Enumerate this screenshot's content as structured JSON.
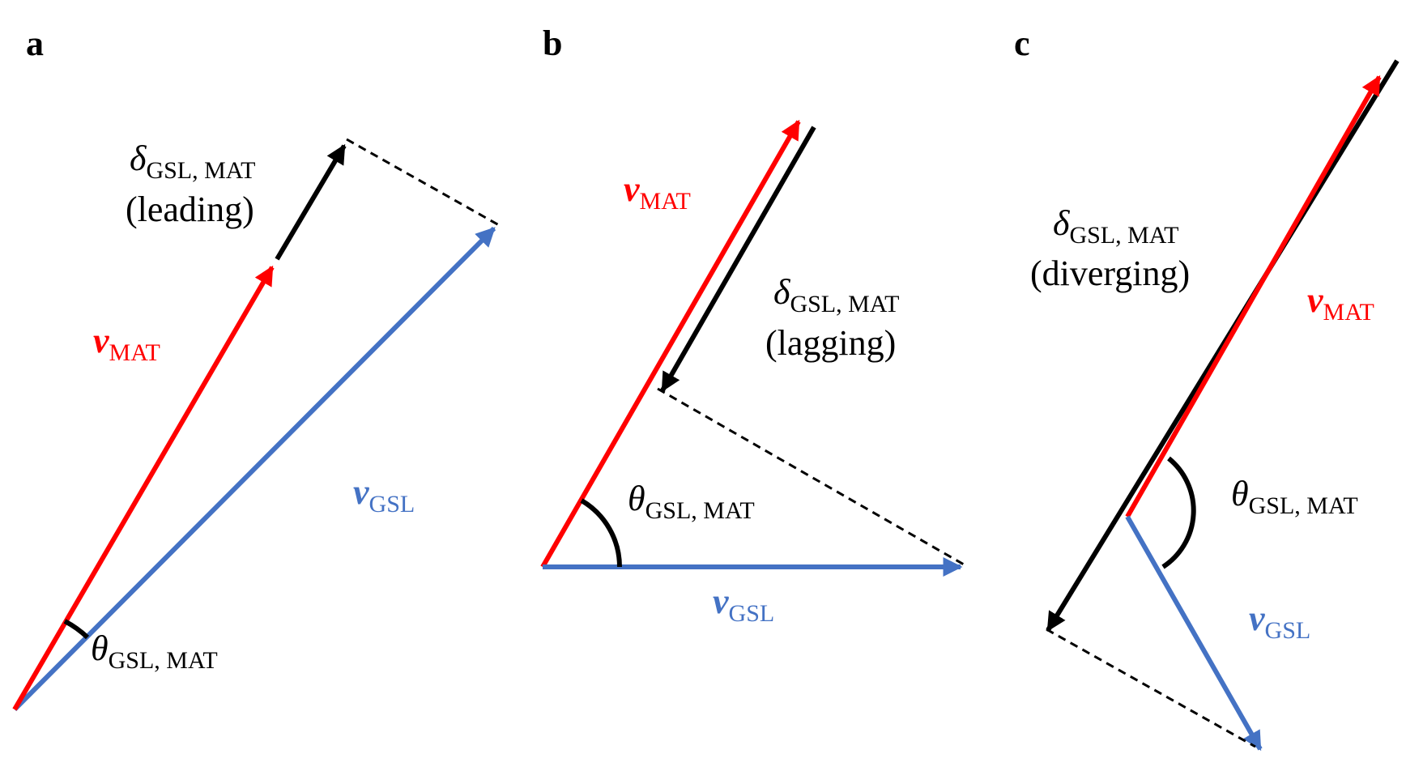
{
  "colors": {
    "red": "#ff0000",
    "blue": "#4472c4",
    "black": "#000000"
  },
  "panels": {
    "a": {
      "letter": "a",
      "v_mat": {
        "symbol": "v",
        "subscript": "MAT"
      },
      "v_gsl": {
        "symbol": "v",
        "subscript": "GSL"
      },
      "delta": {
        "symbol": "δ",
        "subscript": "GSL, MAT",
        "note": "(leading)"
      },
      "theta": {
        "symbol": "θ",
        "subscript": "GSL, MAT"
      }
    },
    "b": {
      "letter": "b",
      "v_mat": {
        "symbol": "v",
        "subscript": "MAT"
      },
      "v_gsl": {
        "symbol": "v",
        "subscript": "GSL"
      },
      "delta": {
        "symbol": "δ",
        "subscript": "GSL, MAT",
        "note": "(lagging)"
      },
      "theta": {
        "symbol": "θ",
        "subscript": "GSL, MAT"
      }
    },
    "c": {
      "letter": "c",
      "v_mat": {
        "symbol": "v",
        "subscript": "MAT"
      },
      "v_gsl": {
        "symbol": "v",
        "subscript": "GSL"
      },
      "delta": {
        "symbol": "δ",
        "subscript": "GSL, MAT",
        "note": "(diverging)"
      },
      "theta": {
        "symbol": "θ",
        "subscript": "GSL, MAT"
      }
    }
  }
}
